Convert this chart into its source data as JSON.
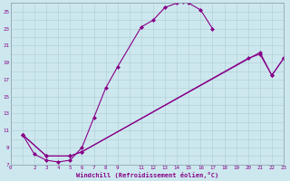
{
  "xlabel": "Windchill (Refroidissement éolien,°C)",
  "bg_color": "#cce8ee",
  "grid_color": "#b0cdd4",
  "line_color": "#880088",
  "xlim": [
    0,
    23
  ],
  "ylim": [
    7,
    26
  ],
  "xticks": [
    0,
    2,
    3,
    4,
    5,
    6,
    7,
    8,
    9,
    11,
    12,
    13,
    14,
    15,
    16,
    17,
    18,
    19,
    20,
    21,
    22,
    23
  ],
  "yticks": [
    7,
    9,
    11,
    13,
    15,
    17,
    19,
    21,
    23,
    25
  ],
  "curve1_x": [
    1.0,
    2.0,
    3.0,
    4.0,
    5.0,
    6.0,
    7.0,
    8.0,
    9.0,
    11.0,
    12.0,
    13.0,
    14.0,
    14.5,
    15.0,
    16.0,
    17.0
  ],
  "curve1_y": [
    10.5,
    8.2,
    7.5,
    7.3,
    7.5,
    9.0,
    12.5,
    16.0,
    18.5,
    23.2,
    24.0,
    25.5,
    26.0,
    26.2,
    26.0,
    25.2,
    23.0
  ],
  "curve2_x": [
    1.0,
    3.0,
    5.0,
    6.0,
    21.0,
    22.0,
    23.0
  ],
  "curve2_y": [
    10.5,
    8.0,
    8.0,
    8.5,
    20.2,
    17.5,
    19.5
  ],
  "curve3_x": [
    1.0,
    3.0,
    5.0,
    6.0,
    20.0,
    21.0,
    22.0,
    23.0
  ],
  "curve3_y": [
    10.5,
    8.0,
    8.0,
    8.5,
    19.5,
    20.0,
    17.5,
    19.5
  ]
}
